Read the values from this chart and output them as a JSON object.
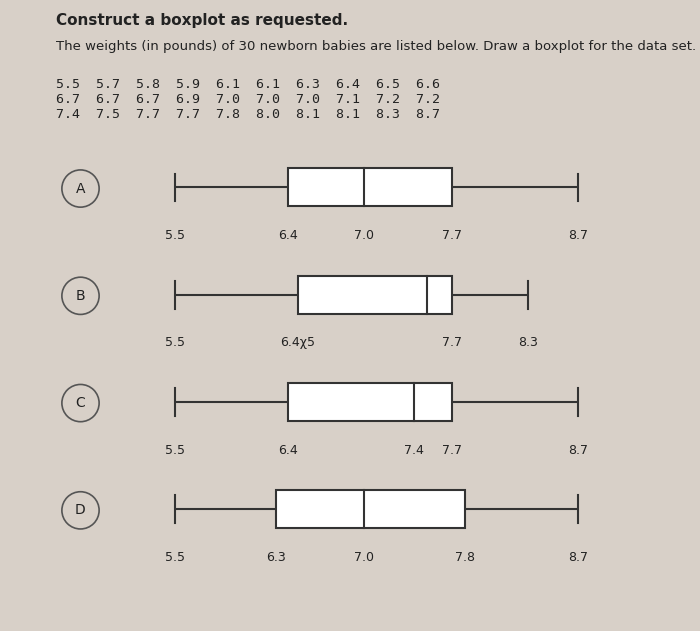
{
  "title": "Construct a boxplot as requested.",
  "description": "The weights (in pounds) of 30 newborn babies are listed below. Draw a boxplot for the data set.",
  "data_lines": [
    "5.5  5.7  5.8  5.9  6.1  6.1  6.3  6.4  6.5  6.6",
    "6.7  6.7  6.7  6.9  7.0  7.0  7.0  7.1  7.2  7.2",
    "7.4  7.5  7.7  7.7  7.8  8.0  8.1  8.1  8.3  8.7"
  ],
  "boxplots": [
    {
      "label": "A",
      "min": 5.5,
      "q1": 6.4,
      "median": 7.0,
      "q3": 7.7,
      "max": 8.7,
      "tick_vals": [
        5.5,
        6.4,
        7.0,
        7.7,
        8.7
      ],
      "tick_labels": [
        "5.5",
        "6.4",
        "7.0",
        "7.7",
        "8.7"
      ]
    },
    {
      "label": "B",
      "min": 5.5,
      "q1": 6.475,
      "median": 7.5,
      "q3": 7.7,
      "max": 8.3,
      "tick_vals": [
        5.5,
        6.475,
        7.7,
        8.3
      ],
      "tick_labels": [
        "5.5",
        "6.4χ5",
        "7.7",
        "8.3"
      ]
    },
    {
      "label": "C",
      "min": 5.5,
      "q1": 6.4,
      "median": 7.4,
      "q3": 7.7,
      "max": 8.7,
      "tick_vals": [
        5.5,
        6.4,
        7.4,
        7.7,
        8.7
      ],
      "tick_labels": [
        "5.5",
        "6.4",
        "7.4",
        "7.7",
        "8.7"
      ]
    },
    {
      "label": "D",
      "min": 5.5,
      "q1": 6.3,
      "median": 7.0,
      "q3": 7.8,
      "max": 8.7,
      "tick_vals": [
        5.5,
        6.3,
        7.0,
        7.8,
        8.7
      ],
      "tick_labels": [
        "5.5",
        "6.3",
        "7.0",
        "7.8",
        "8.7"
      ]
    }
  ],
  "xmin": 5.0,
  "xmax": 9.5,
  "background_color": "#d8d0c8",
  "box_color": "white",
  "box_edge_color": "#333333",
  "line_color": "#333333",
  "text_color": "#222222",
  "circle_edge_color": "#555555",
  "title_fontsize": 11,
  "body_fontsize": 9.5,
  "label_fontsize": 10,
  "tick_fontsize": 9
}
